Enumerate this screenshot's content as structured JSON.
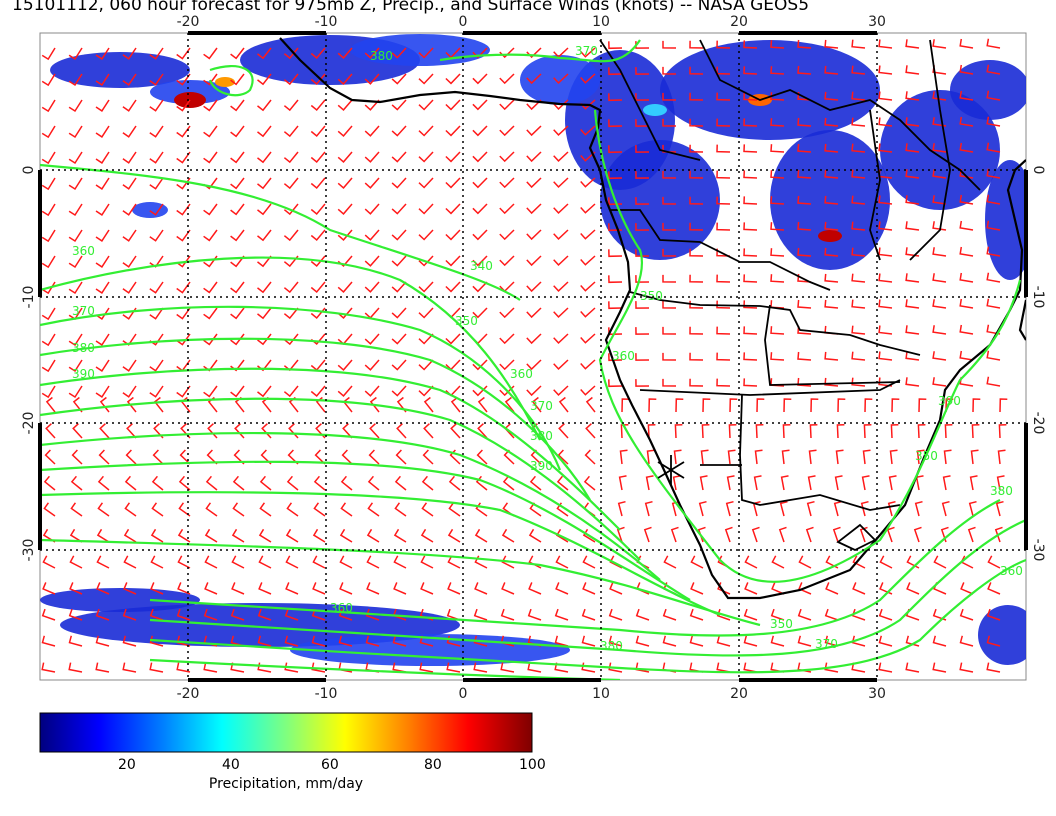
{
  "title": "15101112, 060 hour forecast for 975mb Z, Precip., and Surface Winds (knots) -- NASA GEOS5",
  "map": {
    "lon_range": [
      -30,
      40
    ],
    "lat_range": [
      -40,
      10
    ],
    "lon_ticks": [
      "-20",
      "-10",
      "0",
      "10",
      "20",
      "30"
    ],
    "lat_ticks": [
      "0",
      "-10",
      "-20",
      "-30"
    ],
    "contour_labels": [
      "340",
      "350",
      "360",
      "370",
      "380",
      "390",
      "360",
      "370",
      "380",
      "390",
      "350",
      "360",
      "370",
      "380",
      "360",
      "380",
      "350",
      "370",
      "390",
      "380",
      "360",
      "350"
    ],
    "marker": "station-cross",
    "colors": {
      "wind": "#ff1a1a",
      "contour": "#33ee33",
      "coast": "#000000",
      "grid": "#000000"
    }
  },
  "colorbar": {
    "ticks": [
      "20",
      "40",
      "60",
      "80",
      "100"
    ],
    "title": "Precipitation, mm/day",
    "range": [
      0,
      100
    ],
    "colors": [
      "#00007f",
      "#0000ff",
      "#007fff",
      "#00ffff",
      "#7fff7f",
      "#ffff00",
      "#ff7f00",
      "#ff0000",
      "#7f0000"
    ]
  }
}
